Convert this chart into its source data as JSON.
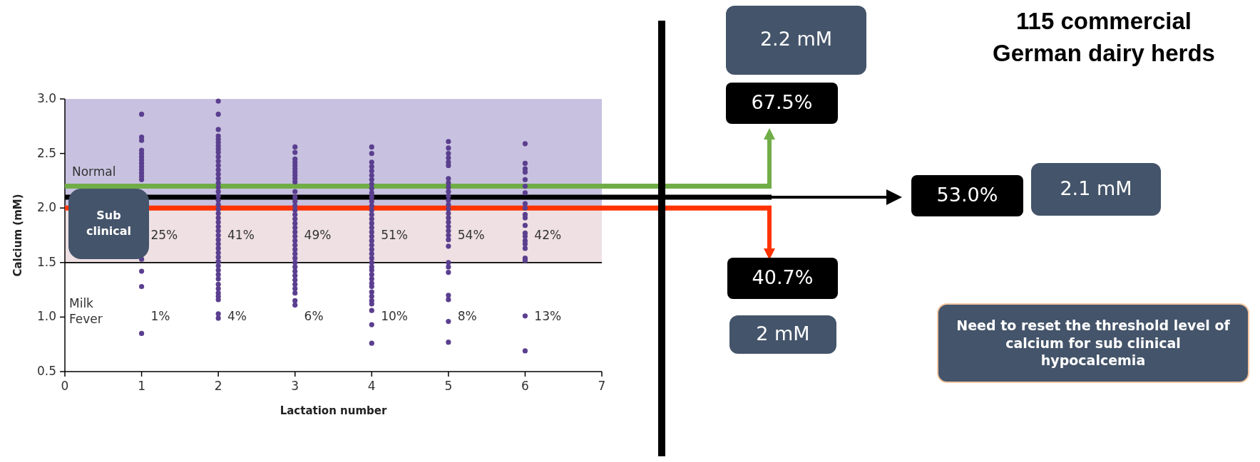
{
  "chart_data": {
    "type": "scatter",
    "title": "115 commercial German dairy herds",
    "xlabel": "Lactation number",
    "ylabel": "Calcium (mM)",
    "xlim": [
      0,
      7
    ],
    "xticks": [
      0,
      1,
      2,
      3,
      4,
      5,
      6,
      7
    ],
    "ylim": [
      0.5,
      3.0
    ],
    "yticks": [
      {
        "value": 0.5,
        "label": "0.5"
      },
      {
        "value": 1,
        "label": "1.0"
      },
      {
        "value": 1.5,
        "label": "1.5"
      },
      {
        "value": 2,
        "label": "2.0"
      },
      {
        "value": 2.5,
        "label": "2.5"
      },
      {
        "value": 3,
        "label": "3.0"
      }
    ],
    "grid": false,
    "marker": "circle",
    "series": [
      {
        "color": "#5b3f8f",
        "x": [
          1,
          1,
          1,
          1,
          1,
          1,
          1,
          1,
          1,
          1,
          1,
          1,
          1,
          1,
          1,
          1,
          1,
          2,
          2,
          2,
          2,
          2,
          2,
          2,
          2,
          2,
          2,
          2,
          2,
          2,
          2,
          2,
          2,
          2,
          2,
          2,
          2,
          2,
          2,
          2,
          2,
          2,
          2,
          2,
          2,
          2,
          2,
          2,
          2,
          2,
          2,
          2,
          2,
          2,
          2,
          2,
          2,
          2,
          2,
          2,
          2,
          2,
          3,
          3,
          3,
          3,
          3,
          3,
          3,
          3,
          3,
          3,
          3,
          3,
          3,
          3,
          3,
          3,
          3,
          3,
          3,
          3,
          3,
          3,
          3,
          3,
          3,
          3,
          3,
          3,
          3,
          3,
          3,
          3,
          3,
          3,
          3,
          3,
          4,
          4,
          4,
          4,
          4,
          4,
          4,
          4,
          4,
          4,
          4,
          4,
          4,
          4,
          4,
          4,
          4,
          4,
          4,
          4,
          4,
          4,
          4,
          4,
          4,
          4,
          4,
          4,
          4,
          4,
          4,
          4,
          4,
          4,
          4,
          4,
          4,
          4,
          4,
          5,
          5,
          5,
          5,
          5,
          5,
          5,
          5,
          5,
          5,
          5,
          5,
          5,
          5,
          5,
          5,
          5,
          5,
          5,
          5,
          5,
          5,
          5,
          5,
          5,
          5,
          5,
          5,
          5,
          6,
          6,
          6,
          6,
          6,
          6,
          6,
          6,
          6,
          6,
          6,
          6,
          6,
          6,
          6,
          6,
          6,
          6,
          6,
          6,
          6
        ],
        "values": [
          2.86,
          2.65,
          2.62,
          2.53,
          2.5,
          2.47,
          2.44,
          2.41,
          2.38,
          2.35,
          2.32,
          2.29,
          2.26,
          1.53,
          1.42,
          1.28,
          0.85,
          2.98,
          2.86,
          2.72,
          2.66,
          2.63,
          2.6,
          2.57,
          2.54,
          2.51,
          2.47,
          2.43,
          2.39,
          2.35,
          2.31,
          2.27,
          2.23,
          2.19,
          2.15,
          2.11,
          2.07,
          2.03,
          1.99,
          1.95,
          1.91,
          1.87,
          1.83,
          1.79,
          1.75,
          1.71,
          1.67,
          1.63,
          1.59,
          1.55,
          1.51,
          1.47,
          1.43,
          1.39,
          1.35,
          1.3,
          1.26,
          1.22,
          1.19,
          1.16,
          1.03,
          0.99,
          2.56,
          2.51,
          2.45,
          2.42,
          2.39,
          2.36,
          2.33,
          2.3,
          2.27,
          2.24,
          2.15,
          2.1,
          2.06,
          2.02,
          1.98,
          1.94,
          1.9,
          1.86,
          1.82,
          1.78,
          1.74,
          1.7,
          1.66,
          1.62,
          1.58,
          1.54,
          1.5,
          1.46,
          1.42,
          1.38,
          1.34,
          1.3,
          1.26,
          1.22,
          1.15,
          1.11,
          2.56,
          2.5,
          2.42,
          2.38,
          2.34,
          2.3,
          2.26,
          2.22,
          2.18,
          2.14,
          2.1,
          2.06,
          2.02,
          1.98,
          1.94,
          1.9,
          1.86,
          1.82,
          1.78,
          1.74,
          1.7,
          1.66,
          1.62,
          1.58,
          1.54,
          1.5,
          1.46,
          1.43,
          1.39,
          1.35,
          1.31,
          1.28,
          1.23,
          1.19,
          1.15,
          1.12,
          1.06,
          0.93,
          0.76,
          2.61,
          2.55,
          2.5,
          2.46,
          2.42,
          2.39,
          2.27,
          2.23,
          2.19,
          2.15,
          2.11,
          2.07,
          2.03,
          1.99,
          1.95,
          1.91,
          1.87,
          1.83,
          1.79,
          1.75,
          1.71,
          1.65,
          1.5,
          1.46,
          1.41,
          1.2,
          1.16,
          0.96,
          0.77,
          2.59,
          2.41,
          2.36,
          2.33,
          2.26,
          2.2,
          2.14,
          2.04,
          2.0,
          1.94,
          1.91,
          1.84,
          1.77,
          1.74,
          1.7,
          1.67,
          1.63,
          1.54,
          1.52,
          1.01,
          0.69
        ]
      }
    ],
    "bands": [
      {
        "axis": "y",
        "from": 2.0,
        "to": 3.0,
        "label": "Normal",
        "color": "#c8c2e0"
      },
      {
        "axis": "y",
        "from": 1.5,
        "to": 2.0,
        "label": "Sub clinical",
        "color": "#eee0e3"
      }
    ],
    "ref_lines": [
      {
        "axis": "y",
        "value": 1.5,
        "color": "#000000"
      },
      {
        "axis": "y",
        "value": 2.2,
        "color": "#70ad47"
      },
      {
        "axis": "y",
        "value": 2.1,
        "color": "#000000"
      },
      {
        "axis": "y",
        "value": 2.0,
        "color": "#ff3300"
      }
    ],
    "annotations": [
      "Milk Fever",
      "25%",
      "41%",
      "49%",
      "51%",
      "54%",
      "42%",
      "1%",
      "4%",
      "6%",
      "10%",
      "8%",
      "13%",
      "2.2 mM",
      "67.5%",
      "53.0%",
      "2.1 mM",
      "40.7%",
      "2 mM",
      "Need to reset the threshold level of calcium for sub clinical hypocalcemia"
    ]
  }
}
